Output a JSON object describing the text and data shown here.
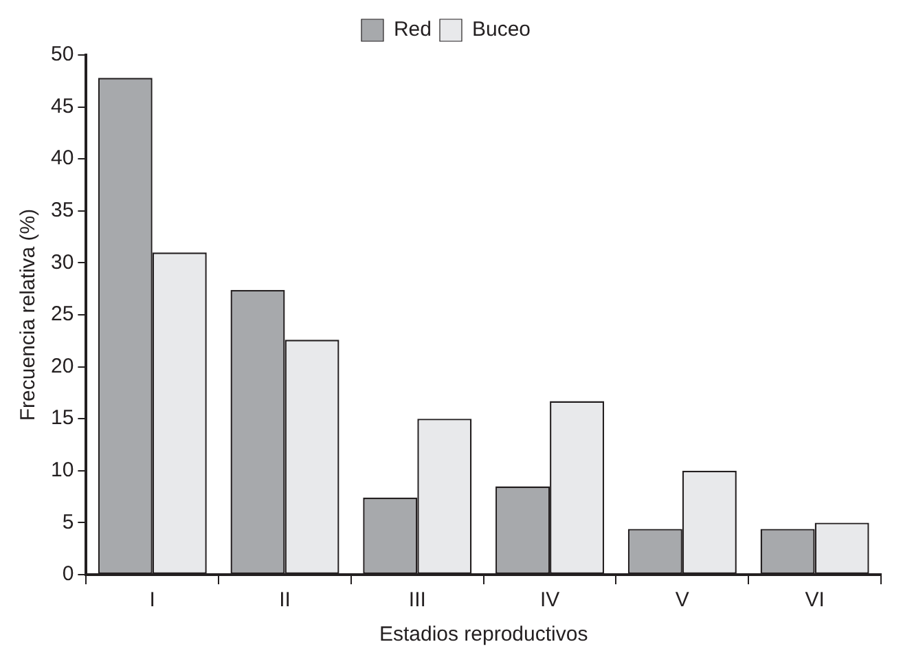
{
  "chart_data": {
    "type": "bar",
    "xlabel": "Estadios reproductivos",
    "ylabel": "Frecuencia relativa (%)",
    "categories": [
      "I",
      "II",
      "III",
      "IV",
      "V",
      "VI"
    ],
    "series": [
      {
        "name": "Red",
        "color": "#a7a9ac",
        "values": [
          47.8,
          27.4,
          7.4,
          8.5,
          4.4,
          4.4
        ]
      },
      {
        "name": "Buceo",
        "color": "#e8e9eb",
        "values": [
          31,
          22.6,
          15,
          16.7,
          10,
          5
        ]
      }
    ],
    "ylim": [
      0,
      50
    ],
    "yticks": [
      0,
      5,
      10,
      15,
      20,
      25,
      30,
      35,
      40,
      45,
      50
    ],
    "grid": false,
    "legend": "top"
  }
}
